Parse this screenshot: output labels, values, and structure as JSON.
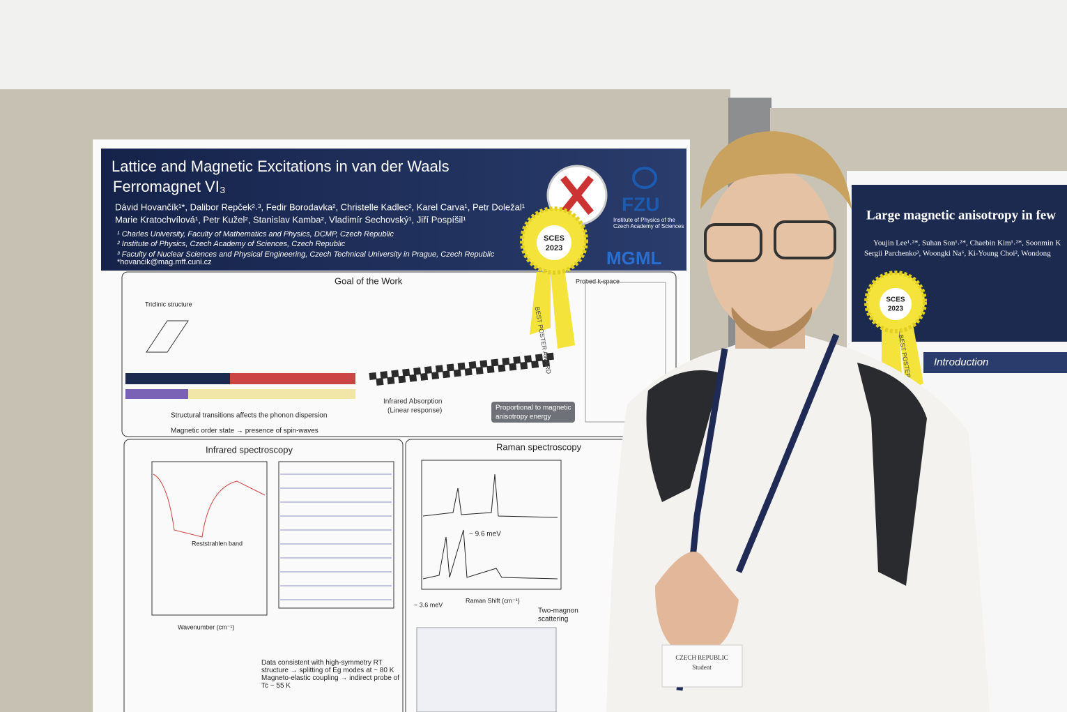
{
  "left_poster": {
    "title_lines": [
      "Lattice and Magnetic Excitations in van der Waals",
      "Ferromagnet VI₃"
    ],
    "authors": [
      "Dávid Hovančík¹*, Dalibor Repček²˒³, Fedir Borodavka², Christelle Kadlec², Karel Carva¹, Petr Doležal¹",
      "Marie Kratochvílová¹, Petr Kužel², Stanislav Kamba², Vladimír Sechovský¹, Jiří Pospíšil¹"
    ],
    "affiliations": [
      "¹ Charles University, Faculty of Mathematics and Physics, DCMP, Czech Republic",
      "² Institute of Physics, Czech Academy of Sciences, Czech Republic",
      "³ Faculty of Nuclear Sciences and Physical Engineering, Czech Technical University in Prague, Czech Republic",
      "*hovancik@mag.mff.cuni.cz"
    ],
    "logos": {
      "fzu": "FZU",
      "fzu_sub": [
        "Institute of Physics of the",
        "Czech Academy of Sciences"
      ],
      "mgml": "MGML"
    },
    "sections": {
      "goal": "Goal of the Work",
      "infrared": "Infrared spectroscopy",
      "raman": "Raman spectroscopy"
    },
    "goal_labels": {
      "triclinic": "Triclinic structure",
      "kspace": "Probed k-space",
      "absorption": [
        "Infrared Absorption",
        "(Linear response)"
      ],
      "proportional": [
        "Proportional to magnetic",
        "anisotropy energy"
      ],
      "bullets": [
        "Structural transitions affects the phonon dispersion",
        "Magnetic order state → presence of spin-waves"
      ]
    },
    "infrared_labels": {
      "band": "Reststrahlen band",
      "xlabel": "Wavenumber (cm⁻¹)",
      "note": "Data consistent with high-symmetry RT structure → splitting of Eg modes at ~ 80 K",
      "note2": "Magneto-elastic coupling → indirect probe of Tc ~ 55 K"
    },
    "raman_labels": {
      "xlabel": "Raman Shift (cm⁻¹)",
      "meV": "~ 9.6 meV",
      "meV2": "~ 3.6 meV",
      "two_magnon": [
        "Two-magnon",
        "scattering"
      ]
    }
  },
  "ribbons": [
    {
      "title": "SCES",
      "year": "2023",
      "tail": "BEST POSTER AWARD"
    },
    {
      "title": "SCES",
      "year": "2023",
      "tail": "BEST POSTER AWARD"
    }
  ],
  "right_poster": {
    "title": "Large magnetic anisotropy in few",
    "authors": [
      "Youjin Lee¹˒²*, Suhan Son¹˒²*, Chaebin Kim¹˒²*, Soonmin K",
      "Sergii Parchenko³, Woongki Na⁶, Ki-Young Choi², Wondong"
    ],
    "introduction": "Introduction"
  },
  "badge": {
    "country": "CZECH REPUBLIC",
    "role": "Student"
  }
}
